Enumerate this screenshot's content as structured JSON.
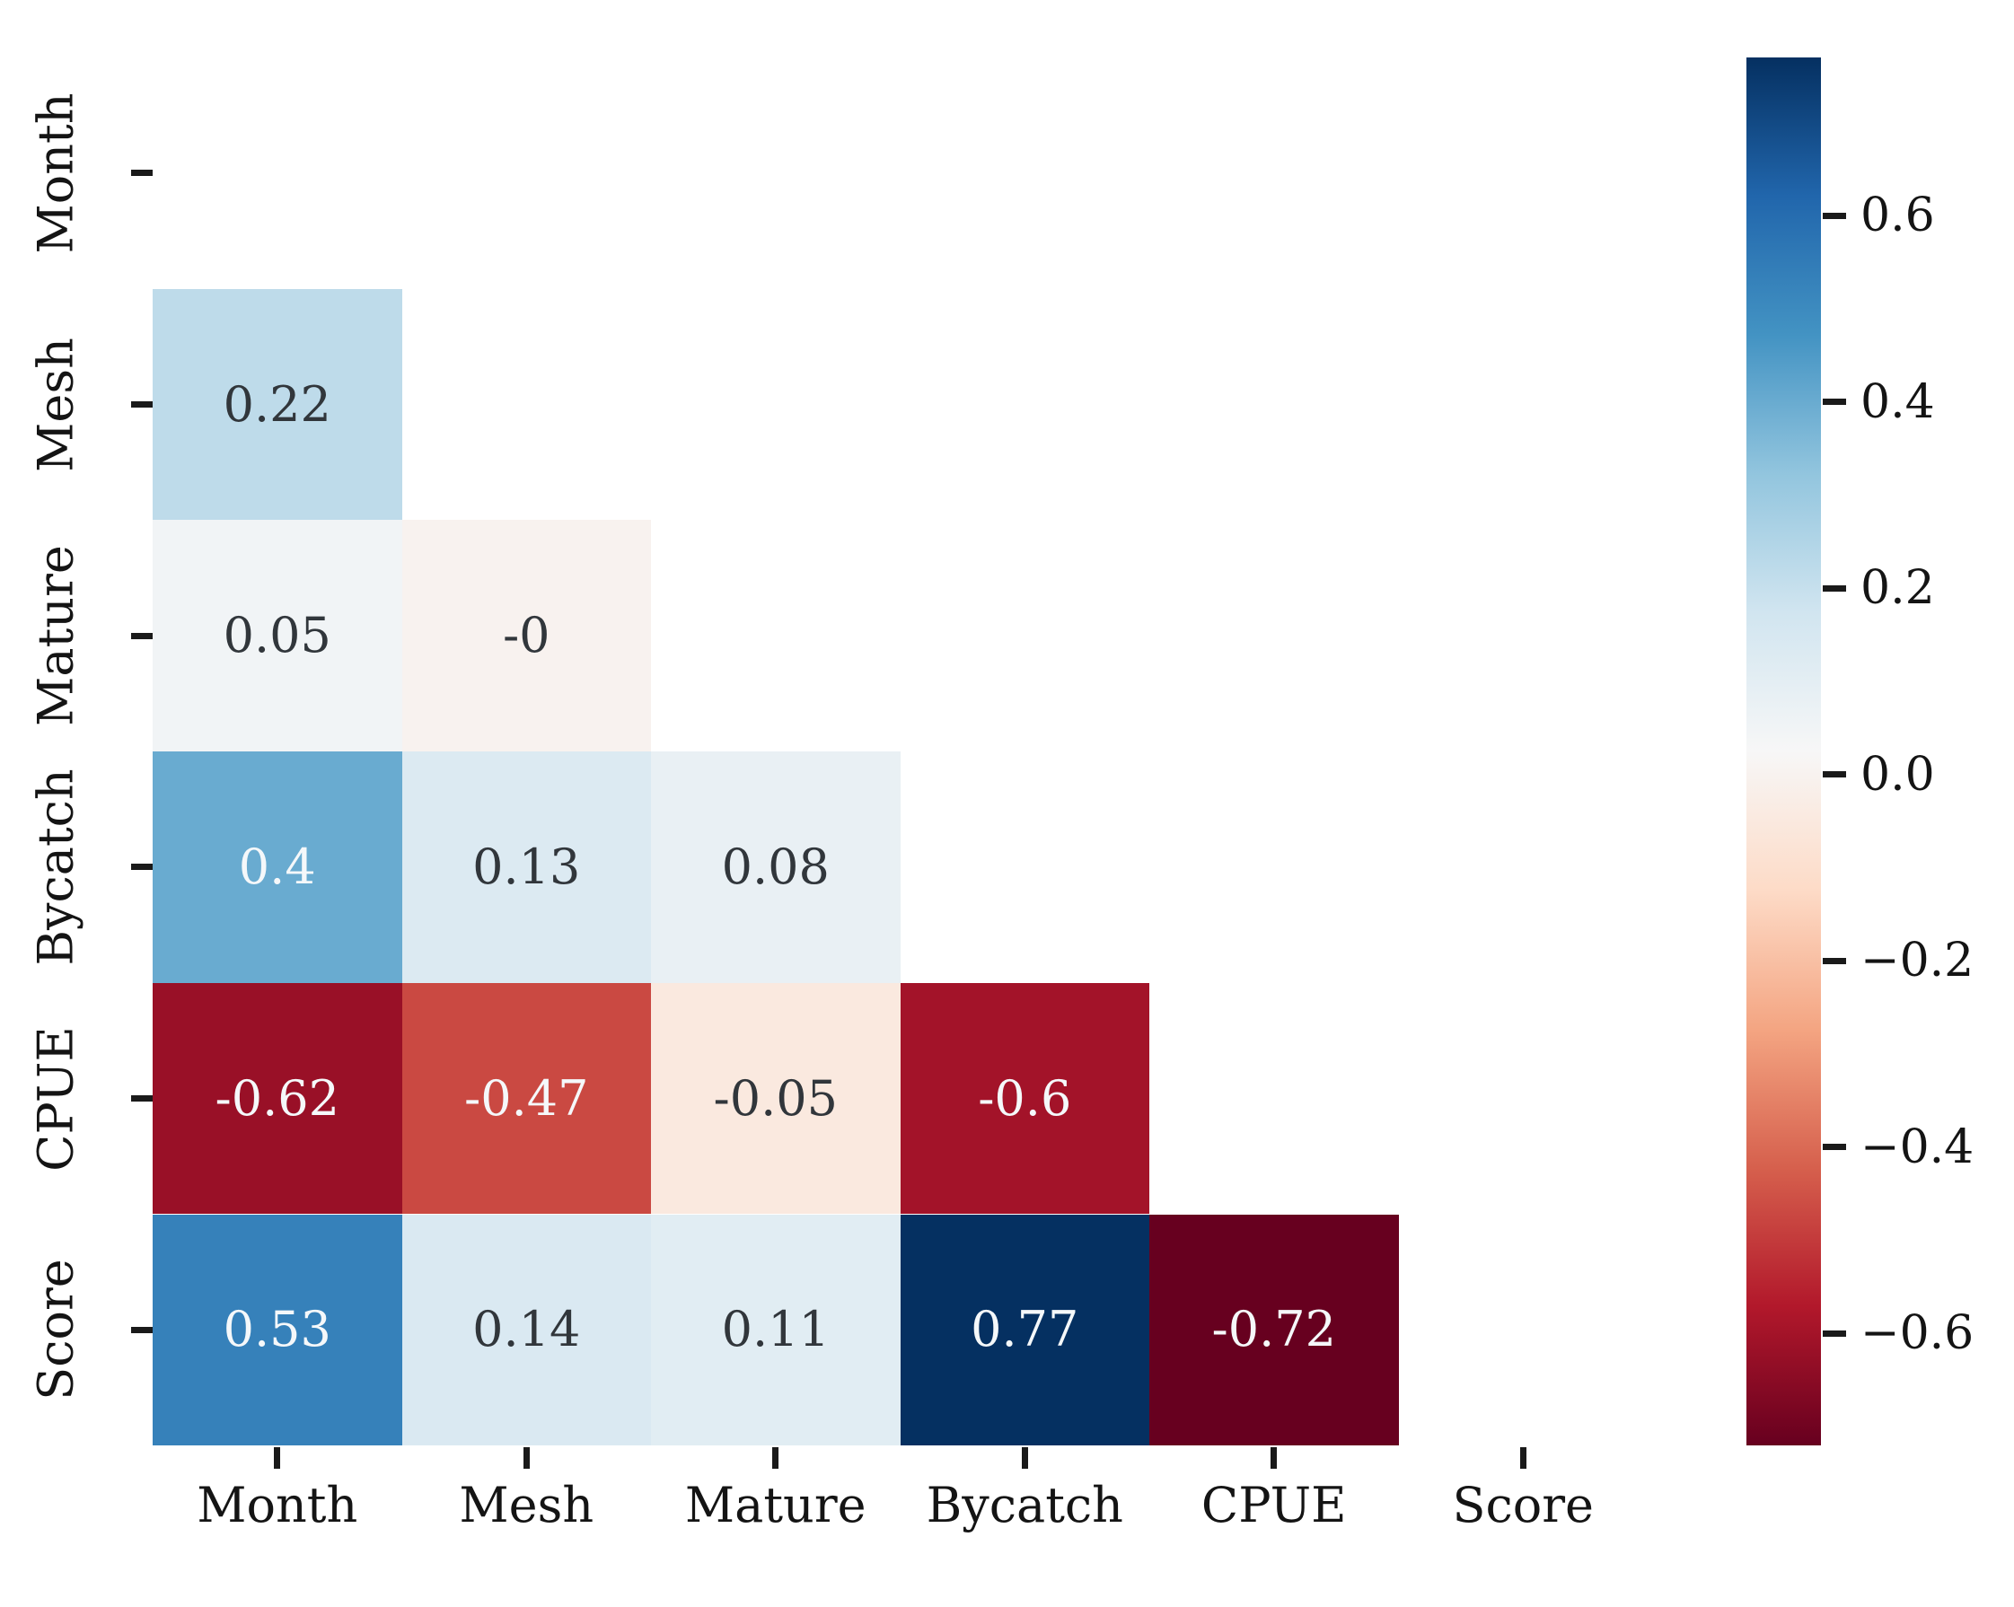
{
  "chart_data": {
    "type": "heatmap",
    "subtype": "correlation-matrix-lower-triangle",
    "title": "",
    "variables": [
      "Month",
      "Mesh",
      "Mature",
      "Bycatch",
      "CPUE",
      "Score"
    ],
    "x_tick_labels": [
      "Month",
      "Mesh",
      "Mature",
      "Bycatch",
      "CPUE",
      "Score"
    ],
    "y_tick_labels": [
      "Month",
      "Mesh",
      "Mature",
      "Bycatch",
      "CPUE",
      "Score"
    ],
    "mask": "upper_triangle_and_diagonal_hidden",
    "values": [
      [
        null,
        null,
        null,
        null,
        null,
        null
      ],
      [
        0.22,
        null,
        null,
        null,
        null,
        null
      ],
      [
        0.05,
        -0.0,
        null,
        null,
        null,
        null
      ],
      [
        0.4,
        0.13,
        0.08,
        null,
        null,
        null
      ],
      [
        -0.62,
        -0.47,
        -0.05,
        -0.6,
        null,
        null
      ],
      [
        0.53,
        0.14,
        0.11,
        0.77,
        -0.72,
        null
      ]
    ],
    "value_labels": [
      [
        "",
        "",
        "",
        "",
        "",
        ""
      ],
      [
        "0.22",
        "",
        "",
        "",
        "",
        ""
      ],
      [
        "0.05",
        "-0",
        "",
        "",
        "",
        ""
      ],
      [
        "0.4",
        "0.13",
        "0.08",
        "",
        "",
        ""
      ],
      [
        "-0.62",
        "-0.47",
        "-0.05",
        "-0.6",
        "",
        ""
      ],
      [
        "0.53",
        "0.14",
        "0.11",
        "0.77",
        "-0.72",
        ""
      ]
    ],
    "colormap": {
      "name": "RdBu",
      "vmin": -0.72,
      "vmax": 0.77,
      "anchors": [
        "#67001f",
        "#b2182b",
        "#d6604d",
        "#f4a582",
        "#fddbc7",
        "#f7f7f7",
        "#d1e5f0",
        "#92c5de",
        "#4393c3",
        "#2166ac",
        "#053061"
      ]
    },
    "colorbar": {
      "position": "right",
      "tick_labels": [
        "0.6",
        "0.4",
        "0.2",
        "0.0",
        "−0.2",
        "−0.4",
        "−0.6"
      ],
      "tick_values": [
        0.6,
        0.4,
        0.2,
        0.0,
        -0.2,
        -0.4,
        -0.6
      ]
    },
    "grid": "off",
    "legend": "none",
    "colors": {
      "background": "#ffffff",
      "annotation_dark_text": "#31363b",
      "annotation_light_text": "#f5f8fa",
      "tick_mark": "#1a1a1a",
      "axis_label_text": "#141414"
    }
  }
}
